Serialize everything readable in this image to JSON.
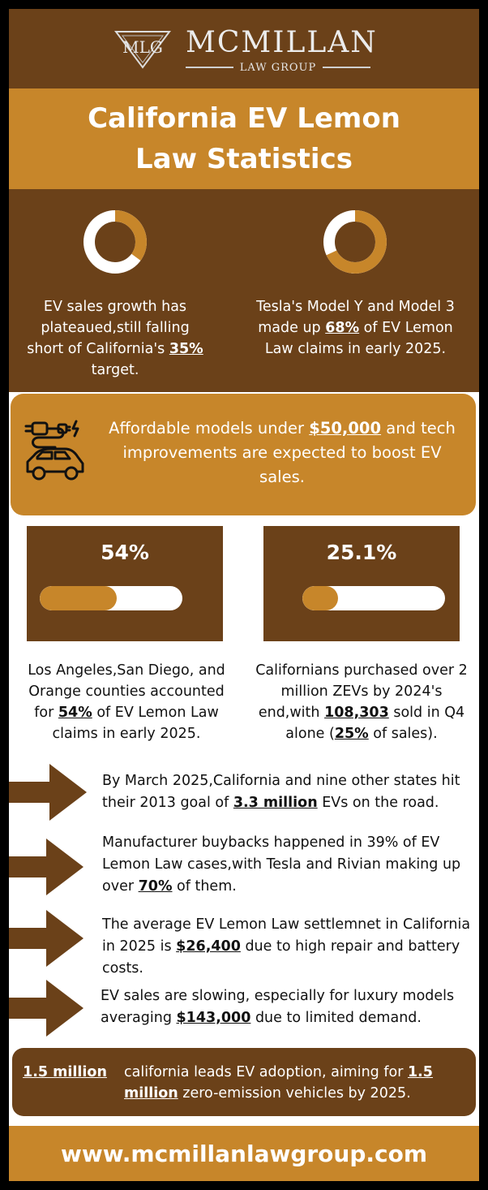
{
  "header": {
    "logo_monogram": "MLG",
    "brand_name": "MCMILLAN",
    "brand_sub": "LAW GROUP"
  },
  "title": "California EV Lemon Law Statistics",
  "donuts": [
    {
      "pre": "EV sales growth has plateaued,still falling short of California's ",
      "highlight": "35%",
      "post": " target.",
      "fraction": 0.35
    },
    {
      "pre": "Tesla's Model Y and Model 3 made up ",
      "highlight": "68%",
      "post": " of EV Lemon Law claims in early 2025.",
      "fraction": 0.68
    }
  ],
  "afford": {
    "pre": "Affordable  models under ",
    "highlight": "$50,000",
    "post": " and tech improvements are expected to boost EV sales."
  },
  "stats": [
    {
      "value": "54%",
      "fraction": 0.54,
      "pre": "Los Angeles,San Diego, and Orange counties accounted for ",
      "highlight": "54%",
      "post": " of EV Lemon Law claims in early 2025."
    },
    {
      "value": "25.1%",
      "fraction": 0.251,
      "pre": "Californians purchased over 2 million ZEVs by 2024's end,with ",
      "highlight": "108,303",
      "mid": " sold in Q4 alone (",
      "highlight2": "25%",
      "post": " of sales)."
    }
  ],
  "facts": [
    {
      "pre": "By March 2025,California and nine other states hit their 2013 goal of ",
      "highlight": "3.3 million",
      "post": " EVs on the road."
    },
    {
      "pre": "Manufacturer buybacks happened in 39% of EV Lemon Law cases,with Tesla and Rivian making up over ",
      "highlight": "70%",
      "post": " of them."
    },
    {
      "pre": "The average EV Lemon Law settlemnet in California in 2025 is ",
      "highlight": "$26,400",
      "post": " due to high repair and battery costs."
    },
    {
      "pre": "EV sales are slowing, especially for luxury models averaging ",
      "highlight": "$143,000",
      "post": " due to limited demand."
    }
  ],
  "footer_box": {
    "left": "1.5 million",
    "pre": "california leads EV adoption, aiming for ",
    "highlight": "1.5 million",
    "post": " zero-emission vehicles by 2025."
  },
  "url": "www.mcmillanlawgroup.com",
  "colors": {
    "brown": "#6b4119",
    "gold": "#c7862a",
    "white": "#ffffff"
  },
  "icons": {
    "donut": "donut-chart-icon",
    "ev": "electric-car-icon",
    "arrow": "right-arrow-icon"
  }
}
